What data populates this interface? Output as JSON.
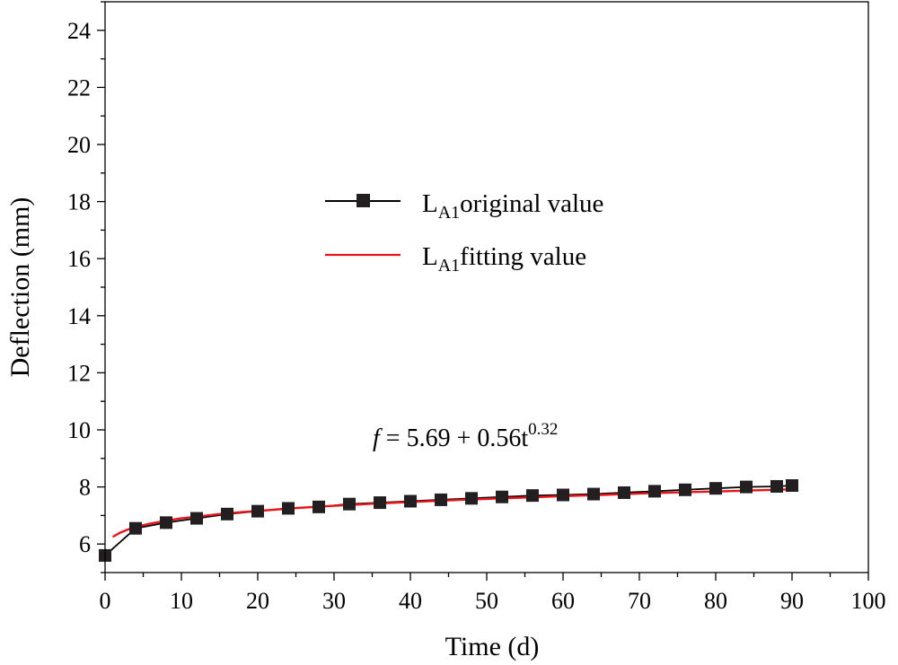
{
  "chart_data": {
    "type": "line",
    "title": "",
    "xlabel": "Time (d)",
    "ylabel": "Deflection (mm)",
    "xlim": [
      0,
      100
    ],
    "ylim": [
      5,
      25
    ],
    "xticks": [
      0,
      10,
      20,
      30,
      40,
      50,
      60,
      70,
      80,
      90,
      100
    ],
    "yticks": [
      6,
      8,
      10,
      12,
      14,
      16,
      18,
      20,
      22,
      24
    ],
    "grid": false,
    "legend_position": "center",
    "legend": [
      {
        "main": "L",
        "sub": "A1",
        "rest": "original value",
        "color": "#000000",
        "marker": "square"
      },
      {
        "main": "L",
        "sub": "A1",
        "rest": "fitting value",
        "color": "#e8141b",
        "marker": "none"
      }
    ],
    "annotation": {
      "f": "f",
      "body": " = 5.69 + 0.56t",
      "exponent": "0.32"
    },
    "series": [
      {
        "name": "LA1 original value",
        "color": "#000000",
        "marker": "square",
        "x": [
          0,
          4,
          8,
          12,
          16,
          20,
          24,
          28,
          32,
          36,
          40,
          44,
          48,
          52,
          56,
          60,
          64,
          68,
          72,
          76,
          80,
          84,
          88,
          90
        ],
        "y": [
          5.6,
          6.55,
          6.75,
          6.9,
          7.05,
          7.15,
          7.25,
          7.3,
          7.4,
          7.45,
          7.5,
          7.55,
          7.6,
          7.65,
          7.7,
          7.72,
          7.75,
          7.8,
          7.85,
          7.9,
          7.95,
          8.0,
          8.02,
          8.05
        ]
      },
      {
        "name": "LA1 fitting value",
        "color": "#e8141b",
        "marker": "none",
        "x": [
          1,
          2,
          3,
          4,
          5,
          6,
          8,
          10,
          12,
          15,
          18,
          20,
          25,
          30,
          35,
          40,
          45,
          50,
          55,
          60,
          65,
          70,
          75,
          80,
          85,
          90
        ],
        "y": [
          6.25,
          6.4,
          6.51,
          6.6,
          6.66,
          6.72,
          6.82,
          6.9,
          6.96,
          7.05,
          7.12,
          7.16,
          7.26,
          7.34,
          7.41,
          7.47,
          7.53,
          7.58,
          7.63,
          7.68,
          7.72,
          7.77,
          7.81,
          7.84,
          7.88,
          7.92
        ]
      }
    ]
  }
}
